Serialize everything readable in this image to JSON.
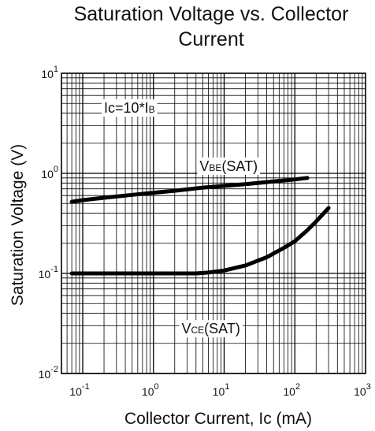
{
  "chart_data": {
    "type": "line",
    "title_line1": "Saturation Voltage vs. Collector",
    "title_line2": "Current",
    "xlabel": "Collector Current, Ic (mA)",
    "ylabel": "Saturation Voltage (V)",
    "x_scale": "log",
    "y_scale": "log",
    "xlim": [
      0.05,
      1000
    ],
    "ylim": [
      0.01,
      10
    ],
    "grid": true,
    "x_ticks": [
      {
        "value": 0.1,
        "base": "10",
        "exp": "-1"
      },
      {
        "value": 1,
        "base": "10",
        "exp": "0"
      },
      {
        "value": 10,
        "base": "10",
        "exp": "1"
      },
      {
        "value": 100,
        "base": "10",
        "exp": "2"
      },
      {
        "value": 1000,
        "base": "10",
        "exp": "3"
      }
    ],
    "y_ticks": [
      {
        "value": 0.01,
        "base": "10",
        "exp": "-2"
      },
      {
        "value": 0.1,
        "base": "10",
        "exp": "-1"
      },
      {
        "value": 1,
        "base": "10",
        "exp": "0"
      },
      {
        "value": 10,
        "base": "10",
        "exp": "1"
      }
    ],
    "condition_annotation": {
      "main": "Ic=10*I",
      "sub": "B",
      "x": 0.2,
      "y": 4.5
    },
    "series": [
      {
        "label_main": "V",
        "label_sub": "BE",
        "label_suffix": "(SAT)",
        "label_at": {
          "x": 4.5,
          "y": 1.18
        },
        "x": [
          0.07,
          0.1,
          0.2,
          0.5,
          1,
          2,
          5,
          10,
          20,
          50,
          100,
          150
        ],
        "values": [
          0.52,
          0.54,
          0.57,
          0.61,
          0.64,
          0.67,
          0.72,
          0.75,
          0.78,
          0.83,
          0.87,
          0.9
        ]
      },
      {
        "label_main": "V",
        "label_sub": "CE",
        "label_suffix": "(SAT)",
        "label_at": {
          "x": 2.5,
          "y": 0.028
        },
        "x": [
          0.07,
          0.1,
          0.5,
          1,
          2,
          4,
          6,
          10,
          20,
          40,
          70,
          100,
          150,
          200,
          300
        ],
        "values": [
          0.1,
          0.1,
          0.1,
          0.1,
          0.1,
          0.1,
          0.102,
          0.107,
          0.12,
          0.145,
          0.18,
          0.21,
          0.27,
          0.33,
          0.45
        ]
      }
    ]
  }
}
